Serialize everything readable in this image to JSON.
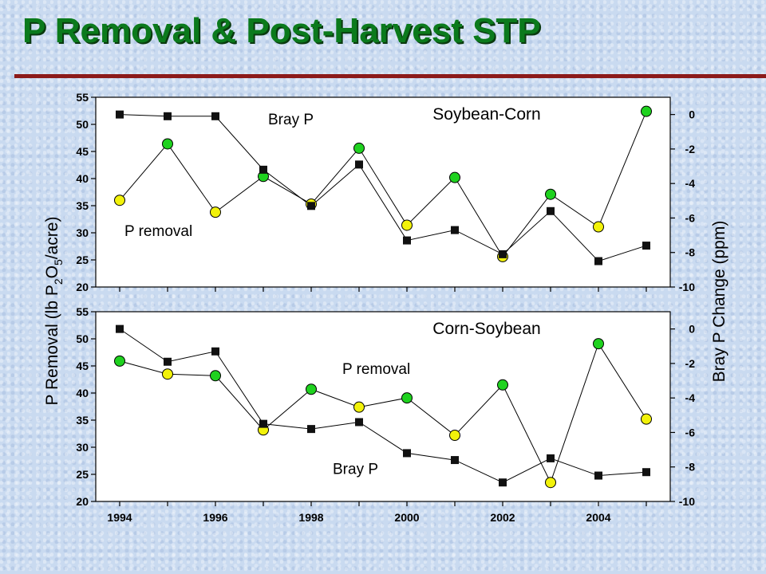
{
  "page": {
    "title": "P Removal & Post-Harvest STP"
  },
  "colors": {
    "green": "#1fd21f",
    "yellow": "#f2f20a",
    "square": "#111111"
  },
  "axes": {
    "left_label_parts": [
      "P Removal (lb P",
      "2",
      "O",
      "5",
      "/acre)"
    ],
    "right_label": "Bray P Change (ppm)"
  },
  "chart_data": [
    {
      "type": "line",
      "title": "Soybean-Corn",
      "x": [
        1994,
        1995,
        1996,
        1997,
        1998,
        1999,
        2000,
        2001,
        2002,
        2003,
        2004,
        2005
      ],
      "xticks": [
        1994,
        1996,
        1998,
        2000,
        2002,
        2004
      ],
      "ylim_left": [
        20,
        55
      ],
      "yticks_left": [
        20,
        25,
        30,
        35,
        40,
        45,
        50,
        55
      ],
      "ylim_right": [
        -10,
        1
      ],
      "yticks_right": [
        -10,
        -8,
        -6,
        -4,
        -2,
        0
      ],
      "series": [
        {
          "name": "P removal",
          "axis": "left",
          "marker": "circle",
          "values": [
            36.0,
            46.4,
            33.8,
            40.4,
            35.3,
            45.6,
            31.4,
            40.2,
            25.6,
            37.1,
            31.1,
            52.4
          ],
          "colors": [
            "yellow",
            "green",
            "yellow",
            "green",
            "yellow",
            "green",
            "yellow",
            "green",
            "yellow",
            "green",
            "yellow",
            "green"
          ]
        },
        {
          "name": "Bray P",
          "axis": "right",
          "marker": "square",
          "values": [
            0.0,
            -0.1,
            -0.1,
            -3.2,
            -5.3,
            -2.9,
            -7.3,
            -6.7,
            -8.1,
            -5.6,
            -8.5,
            -7.6
          ]
        }
      ]
    },
    {
      "type": "line",
      "title": "Corn-Soybean",
      "x": [
        1994,
        1995,
        1996,
        1997,
        1998,
        1999,
        2000,
        2001,
        2002,
        2003,
        2004,
        2005
      ],
      "xticks": [
        1994,
        1996,
        1998,
        2000,
        2002,
        2004
      ],
      "ylim_left": [
        20,
        55
      ],
      "yticks_left": [
        20,
        25,
        30,
        35,
        40,
        45,
        50,
        55
      ],
      "ylim_right": [
        -10,
        1
      ],
      "yticks_right": [
        -10,
        -8,
        -6,
        -4,
        -2,
        0
      ],
      "series": [
        {
          "name": "P removal",
          "axis": "left",
          "marker": "circle",
          "values": [
            45.9,
            43.5,
            43.2,
            33.2,
            40.7,
            37.4,
            39.1,
            32.2,
            41.5,
            23.5,
            49.1,
            35.2
          ],
          "colors": [
            "green",
            "yellow",
            "green",
            "yellow",
            "green",
            "yellow",
            "green",
            "yellow",
            "green",
            "yellow",
            "green",
            "yellow"
          ]
        },
        {
          "name": "Bray P",
          "axis": "right",
          "marker": "square",
          "values": [
            0.0,
            -1.9,
            -1.3,
            -5.5,
            -5.8,
            -5.4,
            -7.2,
            -7.6,
            -8.9,
            -7.5,
            -8.5,
            -8.3
          ]
        }
      ]
    }
  ],
  "annotations": [
    {
      "panel": 0,
      "text": "Bray P",
      "x": 1997.1,
      "y": 50
    },
    {
      "panel": 0,
      "text": "P removal",
      "x": 1994.1,
      "y": 29.4
    },
    {
      "panel": 1,
      "text": "P removal",
      "x": 1998.65,
      "y": 43.5
    },
    {
      "panel": 1,
      "text": "Bray P",
      "x": 1998.45,
      "y": 25.1
    }
  ]
}
